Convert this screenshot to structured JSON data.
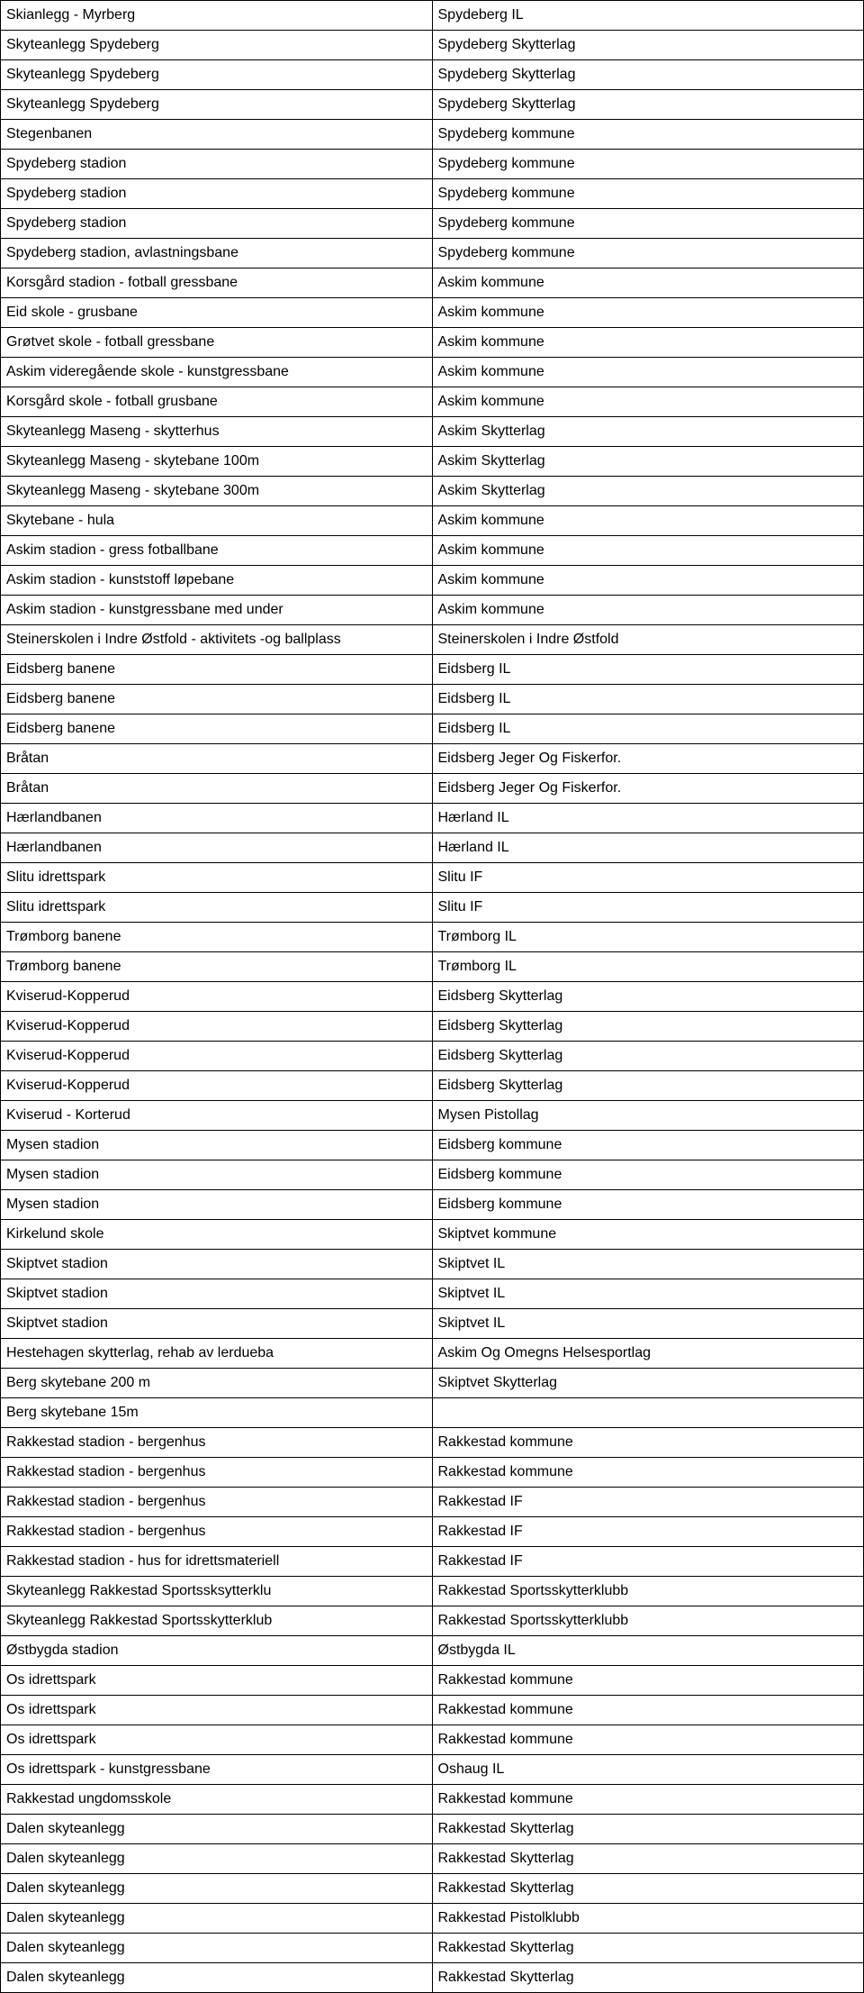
{
  "table": {
    "colA_width_pct": 50,
    "colB_width_pct": 50,
    "border_color": "#000000",
    "background_color": "#ffffff",
    "text_color": "#000000",
    "font_size": 16,
    "rows": [
      [
        "Skianlegg - Myrberg",
        "Spydeberg IL"
      ],
      [
        "Skyteanlegg Spydeberg",
        "Spydeberg Skytterlag"
      ],
      [
        "Skyteanlegg Spydeberg",
        "Spydeberg Skytterlag"
      ],
      [
        "Skyteanlegg Spydeberg",
        "Spydeberg Skytterlag"
      ],
      [
        "Stegenbanen",
        "Spydeberg kommune"
      ],
      [
        "Spydeberg stadion",
        "Spydeberg kommune"
      ],
      [
        "Spydeberg stadion",
        "Spydeberg kommune"
      ],
      [
        "Spydeberg stadion",
        "Spydeberg kommune"
      ],
      [
        "Spydeberg stadion, avlastningsbane",
        "Spydeberg kommune"
      ],
      [
        "Korsgård stadion - fotball gressbane",
        "Askim kommune"
      ],
      [
        "Eid skole - grusbane",
        "Askim kommune"
      ],
      [
        "Grøtvet skole - fotball gressbane",
        "Askim kommune"
      ],
      [
        "Askim videregående skole - kunstgressbane",
        "Askim kommune"
      ],
      [
        "Korsgård skole - fotball grusbane",
        "Askim kommune"
      ],
      [
        "Skyteanlegg Maseng -  skytterhus",
        "Askim Skytterlag"
      ],
      [
        "Skyteanlegg Maseng - skytebane 100m",
        "Askim Skytterlag"
      ],
      [
        "Skyteanlegg Maseng - skytebane 300m",
        "Askim Skytterlag"
      ],
      [
        "Skytebane - hula",
        "Askim kommune"
      ],
      [
        "Askim stadion - gress fotballbane",
        "Askim kommune"
      ],
      [
        "Askim stadion - kunststoff løpebane",
        "Askim kommune"
      ],
      [
        "Askim stadion - kunstgressbane med under",
        "Askim kommune"
      ],
      [
        "Steinerskolen i Indre Østfold - aktivitets -og ballplass",
        "Steinerskolen i Indre Østfold"
      ],
      [
        "Eidsberg banene",
        "Eidsberg IL"
      ],
      [
        "Eidsberg banene",
        "Eidsberg IL"
      ],
      [
        "Eidsberg banene",
        "Eidsberg IL"
      ],
      [
        "Bråtan",
        "Eidsberg Jeger Og Fiskerfor."
      ],
      [
        "Bråtan",
        "Eidsberg Jeger Og Fiskerfor."
      ],
      [
        "Hærlandbanen",
        "Hærland IL"
      ],
      [
        "Hærlandbanen",
        "Hærland IL"
      ],
      [
        "Slitu idrettspark",
        "Slitu IF"
      ],
      [
        "Slitu idrettspark",
        "Slitu IF"
      ],
      [
        "Trømborg banene",
        "Trømborg IL"
      ],
      [
        "Trømborg banene",
        "Trømborg IL"
      ],
      [
        "Kviserud-Kopperud",
        "Eidsberg Skytterlag"
      ],
      [
        "Kviserud-Kopperud",
        "Eidsberg Skytterlag"
      ],
      [
        "Kviserud-Kopperud",
        "Eidsberg Skytterlag"
      ],
      [
        "Kviserud-Kopperud",
        "Eidsberg Skytterlag"
      ],
      [
        "Kviserud - Korterud",
        "Mysen Pistollag"
      ],
      [
        "Mysen stadion",
        "Eidsberg kommune"
      ],
      [
        "Mysen stadion",
        "Eidsberg kommune"
      ],
      [
        "Mysen stadion",
        "Eidsberg kommune"
      ],
      [
        "Kirkelund skole",
        "Skiptvet kommune"
      ],
      [
        "Skiptvet stadion",
        "Skiptvet IL"
      ],
      [
        "Skiptvet stadion",
        "Skiptvet IL"
      ],
      [
        "Skiptvet stadion",
        "Skiptvet IL"
      ],
      [
        "Hestehagen skytterlag, rehab av lerdueba",
        "Askim Og Omegns Helsesportlag"
      ],
      [
        "Berg skytebane 200 m",
        "Skiptvet Skytterlag"
      ],
      [
        "Berg skytebane 15m",
        ""
      ],
      [
        "Rakkestad stadion - bergenhus",
        "Rakkestad kommune"
      ],
      [
        "Rakkestad stadion - bergenhus",
        "Rakkestad kommune"
      ],
      [
        "Rakkestad stadion - bergenhus",
        "Rakkestad IF"
      ],
      [
        "Rakkestad stadion - bergenhus",
        "Rakkestad IF"
      ],
      [
        "Rakkestad stadion - hus for idrettsmateriell",
        "Rakkestad IF"
      ],
      [
        "Skyteanlegg Rakkestad  Sportssksytterklu",
        "Rakkestad Sportsskytterklubb"
      ],
      [
        "Skyteanlegg Rakkestad  Sportsskytterklub",
        "Rakkestad Sportsskytterklubb"
      ],
      [
        "Østbygda stadion",
        "Østbygda IL"
      ],
      [
        "Os idrettspark",
        "Rakkestad kommune"
      ],
      [
        "Os idrettspark",
        "Rakkestad kommune"
      ],
      [
        "Os idrettspark",
        "Rakkestad kommune"
      ],
      [
        "Os idrettspark - kunstgressbane",
        "Oshaug IL"
      ],
      [
        "Rakkestad ungdomsskole",
        "Rakkestad kommune"
      ],
      [
        "Dalen skyteanlegg",
        "Rakkestad Skytterlag"
      ],
      [
        "Dalen skyteanlegg",
        "Rakkestad Skytterlag"
      ],
      [
        "Dalen skyteanlegg",
        "Rakkestad Skytterlag"
      ],
      [
        "Dalen skyteanlegg",
        "Rakkestad Pistolklubb"
      ],
      [
        "Dalen skyteanlegg",
        "Rakkestad Skytterlag"
      ],
      [
        "Dalen skyteanlegg",
        "Rakkestad Skytterlag"
      ]
    ]
  }
}
